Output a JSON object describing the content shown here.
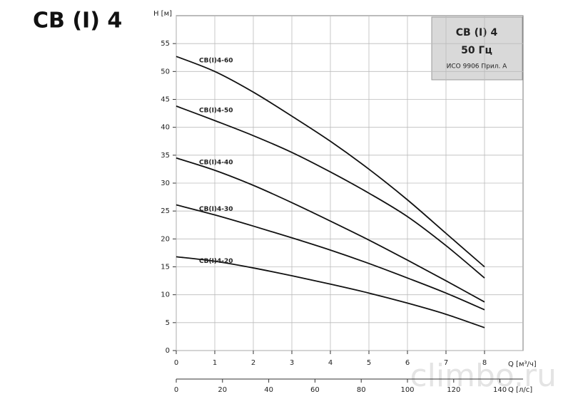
{
  "title": "CB (I) 4",
  "info_box": {
    "line1": "CB (I) 4",
    "line2": "50 Гц",
    "line3": "ИСО 9906 Прил. А"
  },
  "watermark": "climbo.ru",
  "chart_data": {
    "type": "line",
    "y_label": "H [м]",
    "x_label": "Q [м³/ч]",
    "x2_label": "Q [л/с]",
    "x": [
      0,
      1,
      2,
      3,
      4,
      5,
      6,
      7,
      8
    ],
    "xlim": [
      0,
      9
    ],
    "xticks": [
      0,
      1,
      2,
      3,
      4,
      5,
      6,
      7,
      8
    ],
    "x2lim": [
      0,
      150
    ],
    "x2ticks": [
      0,
      20,
      40,
      60,
      80,
      100,
      120,
      140
    ],
    "ylim": [
      0,
      60
    ],
    "yticks": [
      0,
      5,
      10,
      15,
      20,
      25,
      30,
      35,
      40,
      45,
      50,
      55
    ],
    "grid": true,
    "series": [
      {
        "name": "CB(I)4-60",
        "color": "#111111",
        "values": [
          52.7,
          50,
          46.3,
          42,
          37.5,
          32.5,
          27,
          21,
          15
        ]
      },
      {
        "name": "CB(I)4-50",
        "color": "#111111",
        "values": [
          43.8,
          41.2,
          38.5,
          35.5,
          32,
          28.2,
          24,
          18.8,
          13
        ]
      },
      {
        "name": "CB(I)4-40",
        "color": "#111111",
        "values": [
          34.5,
          32.3,
          29.6,
          26.5,
          23.2,
          19.8,
          16.2,
          12.5,
          8.7
        ]
      },
      {
        "name": "CB(I)4-30",
        "color": "#111111",
        "values": [
          26.1,
          24.3,
          22.3,
          20.2,
          18,
          15.6,
          13,
          10.3,
          7.3
        ]
      },
      {
        "name": "CB(I)4-20",
        "color": "#111111",
        "values": [
          16.8,
          16,
          14.8,
          13.4,
          11.9,
          10.3,
          8.5,
          6.5,
          4.1
        ]
      }
    ]
  }
}
